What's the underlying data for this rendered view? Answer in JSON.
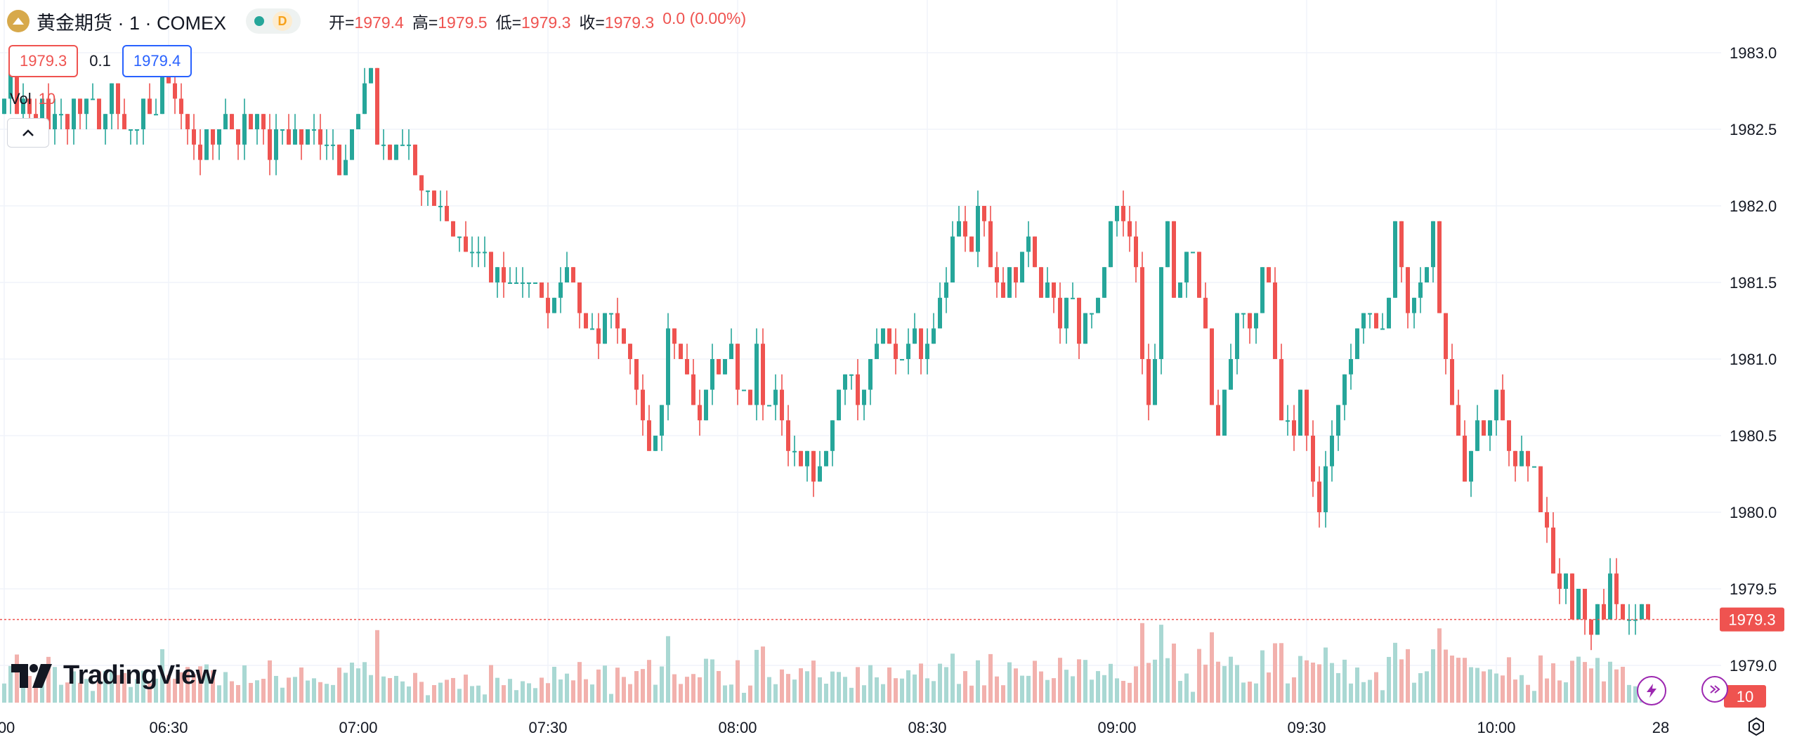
{
  "header": {
    "symbol_title": "黄金期货 · 1 · COMEX",
    "timeframe_badge": "D",
    "ohlc": {
      "open_label": "开=",
      "open": "1979.4",
      "high_label": "高=",
      "high": "1979.5",
      "low_label": "低=",
      "low": "1979.3",
      "close_label": "收=",
      "close": "1979.3",
      "change": "0.0 (0.00%)"
    }
  },
  "quote": {
    "bid": "1979.3",
    "spread": "0.1",
    "ask": "1979.4"
  },
  "volume_legend": {
    "label": "Vol",
    "value": "10"
  },
  "brand": {
    "name": "TradingView"
  },
  "colors": {
    "up": "#26a69a",
    "down": "#ef5350",
    "volume_up": "#a9d8d3",
    "volume_down": "#f2b1ad",
    "grid": "#f0f3fa",
    "text": "#131722"
  },
  "icons": {
    "symbol": "gold-coin-icon",
    "collapse": "chevron-up-icon",
    "quick_action": "lightning-icon",
    "replay": "replay-icon",
    "settings": "gear-icon"
  },
  "chart_data": {
    "type": "candlestick",
    "interval": "1 minute",
    "y_axis": {
      "ticks": [
        1979.0,
        1979.5,
        1980.0,
        1980.5,
        1981.0,
        1981.5,
        1982.0,
        1982.5,
        1983.0
      ],
      "range": [
        1978.9,
        1983.3
      ]
    },
    "x_axis": {
      "ticks": [
        {
          "label": ":00",
          "i": 0
        },
        {
          "label": "06:30",
          "i": 26
        },
        {
          "label": "07:00",
          "i": 56
        },
        {
          "label": "07:30",
          "i": 86
        },
        {
          "label": "08:00",
          "i": 116
        },
        {
          "label": "08:30",
          "i": 146
        },
        {
          "label": "09:00",
          "i": 176
        },
        {
          "label": "09:30",
          "i": 206
        },
        {
          "label": "10:00",
          "i": 236
        },
        {
          "label": "28",
          "i": 262
        }
      ]
    },
    "last_price": "1979.3",
    "last_volume": "10",
    "close_series": [
      1982.7,
      1982.9,
      1982.6,
      1982.7,
      1982.6,
      1982.5,
      1982.7,
      1982.5,
      1982.6,
      1982.6,
      1982.5,
      1982.7,
      1982.6,
      1982.7,
      1982.7,
      1982.5,
      1982.6,
      1982.8,
      1982.6,
      1982.5,
      1982.5,
      1982.5,
      1982.7,
      1982.6,
      1982.6,
      1982.9,
      1982.8,
      1982.7,
      1982.6,
      1982.5,
      1982.4,
      1982.3,
      1982.5,
      1982.4,
      1982.5,
      1982.6,
      1982.5,
      1982.4,
      1982.6,
      1982.5,
      1982.6,
      1982.5,
      1982.3,
      1982.5,
      1982.5,
      1982.4,
      1982.5,
      1982.4,
      1982.5,
      1982.5,
      1982.4,
      1982.4,
      1982.4,
      1982.2,
      1982.3,
      1982.5,
      1982.6,
      1982.8,
      1982.9,
      1982.4,
      1982.4,
      1982.3,
      1982.4,
      1982.4,
      1982.4,
      1982.2,
      1982.1,
      1982.1,
      1982.0,
      1982.0,
      1981.9,
      1981.8,
      1981.8,
      1981.7,
      1981.7,
      1981.7,
      1981.7,
      1981.5,
      1981.6,
      1981.5,
      1981.5,
      1981.5,
      1981.5,
      1981.5,
      1981.5,
      1981.4,
      1981.3,
      1981.4,
      1981.5,
      1981.6,
      1981.5,
      1981.3,
      1981.2,
      1981.2,
      1981.1,
      1981.3,
      1981.3,
      1981.2,
      1981.1,
      1981.0,
      1980.8,
      1980.6,
      1980.4,
      1980.5,
      1980.7,
      1981.2,
      1981.1,
      1981.0,
      1980.9,
      1980.7,
      1980.6,
      1980.8,
      1981.0,
      1980.9,
      1981.0,
      1981.1,
      1980.8,
      1980.8,
      1980.7,
      1981.1,
      1980.7,
      1980.7,
      1980.8,
      1980.6,
      1980.4,
      1980.4,
      1980.3,
      1980.4,
      1980.2,
      1980.3,
      1980.4,
      1980.6,
      1980.8,
      1980.9,
      1980.9,
      1980.7,
      1980.8,
      1981.0,
      1981.1,
      1981.2,
      1981.1,
      1981.0,
      1981.0,
      1981.1,
      1981.2,
      1981.0,
      1981.1,
      1981.2,
      1981.4,
      1981.5,
      1981.8,
      1981.9,
      1981.8,
      1981.7,
      1982.0,
      1981.9,
      1981.6,
      1981.5,
      1981.4,
      1981.6,
      1981.5,
      1981.7,
      1981.8,
      1981.6,
      1981.4,
      1981.5,
      1981.4,
      1981.2,
      1981.4,
      1981.4,
      1981.1,
      1981.3,
      1981.3,
      1981.4,
      1981.6,
      1981.9,
      1982.0,
      1981.9,
      1981.8,
      1981.6,
      1981.0,
      1980.7,
      1981.0,
      1981.6,
      1981.9,
      1981.4,
      1981.5,
      1981.7,
      1981.7,
      1981.4,
      1981.2,
      1980.7,
      1980.5,
      1980.8,
      1981.0,
      1981.3,
      1981.3,
      1981.2,
      1981.3,
      1981.6,
      1981.5,
      1981.0,
      1980.6,
      1980.6,
      1980.5,
      1980.8,
      1980.5,
      1980.2,
      1980.0,
      1980.3,
      1980.5,
      1980.7,
      1980.9,
      1981.0,
      1981.2,
      1981.3,
      1981.3,
      1981.2,
      1981.2,
      1981.4,
      1981.9,
      1981.6,
      1981.3,
      1981.4,
      1981.5,
      1981.6,
      1981.9,
      1981.3,
      1981.0,
      1980.7,
      1980.5,
      1980.2,
      1980.4,
      1980.6,
      1980.5,
      1980.6,
      1980.8,
      1980.6,
      1980.4,
      1980.3,
      1980.4,
      1980.3,
      1980.3,
      1980.0,
      1979.9,
      1979.6,
      1979.5,
      1979.6,
      1979.3,
      1979.5,
      1979.3,
      1979.2,
      1979.4,
      1979.3,
      1979.6,
      1979.4,
      1979.3,
      1979.3,
      1979.3,
      1979.4,
      1979.3
    ]
  }
}
